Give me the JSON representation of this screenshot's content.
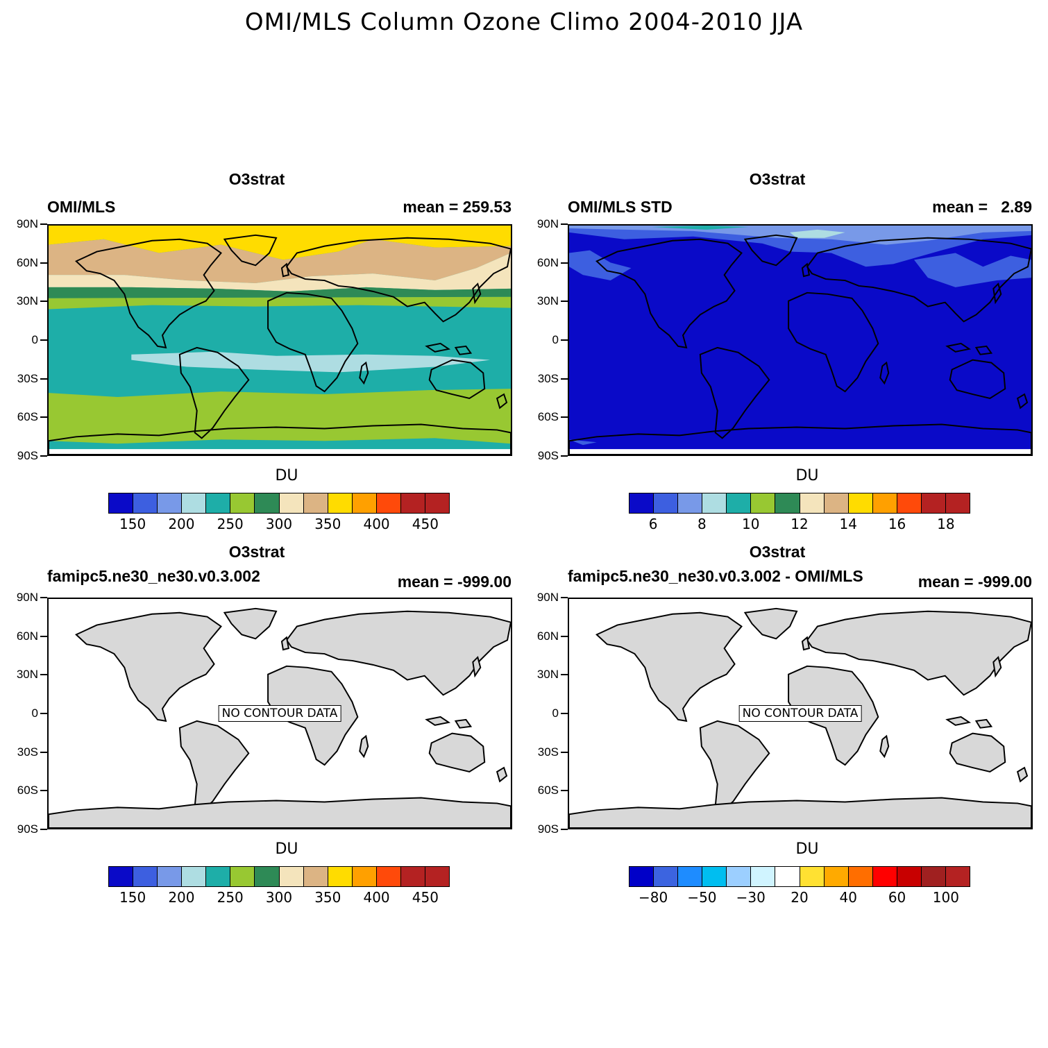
{
  "title": "OMI/MLS Column Ozone Climo 2004-2010 JJA",
  "colors": {
    "ozone_palette": [
      "#0a0ac8",
      "#3d5fe0",
      "#7899e8",
      "#aedde2",
      "#1eaea8",
      "#98c832",
      "#2e8a56",
      "#f4e4bc",
      "#dcb484",
      "#ffdc00",
      "#ffa000",
      "#ff4a0a",
      "#b42222",
      "#b42222"
    ],
    "diff_palette": [
      "#0000c8",
      "#3c64e0",
      "#1e8cff",
      "#00bef0",
      "#9ccfff",
      "#d0f4ff",
      "#ffffff",
      "#ffe132",
      "#ffaa00",
      "#ff6e00",
      "#ff0000",
      "#c80000",
      "#a02020",
      "#b42222"
    ],
    "land_gray": "#d8d8d8"
  },
  "lat_labels": [
    "90N",
    "60N",
    "30N",
    "0",
    "30S",
    "60S",
    "90S"
  ],
  "panels": [
    {
      "id": "omi-mls",
      "title": "O3strat",
      "left": "OMI/MLS",
      "right": "mean = 259.53",
      "units": "DU",
      "colorbar_labels": [
        "150",
        "200",
        "250",
        "300",
        "350",
        "400",
        "450"
      ],
      "fill": "ozone",
      "no_data": false
    },
    {
      "id": "omi-mls-std",
      "title": "O3strat",
      "left": "OMI/MLS STD",
      "right": "mean =   2.89",
      "units": "DU",
      "colorbar_labels": [
        "6",
        "8",
        "10",
        "12",
        "14",
        "16",
        "18"
      ],
      "fill": "std",
      "no_data": false
    },
    {
      "id": "model",
      "title": "O3strat",
      "left": "famipc5.ne30_ne30.v0.3.002",
      "right": "mean = -999.00",
      "units": "DU",
      "colorbar_labels": [
        "150",
        "200",
        "250",
        "300",
        "350",
        "400",
        "450"
      ],
      "fill": "none",
      "no_data": true,
      "no_data_text": "NO CONTOUR DATA"
    },
    {
      "id": "model-minus-obs",
      "title": "O3strat",
      "left": "famipc5.ne30_ne30.v0.3.002 - OMI/MLS",
      "right": "mean = -999.00",
      "units": "DU",
      "colorbar_labels": [
        "−80",
        "−50",
        "−30",
        "20",
        "40",
        "60",
        "100"
      ],
      "fill": "none",
      "no_data": true,
      "no_data_text": "NO CONTOUR DATA"
    }
  ]
}
